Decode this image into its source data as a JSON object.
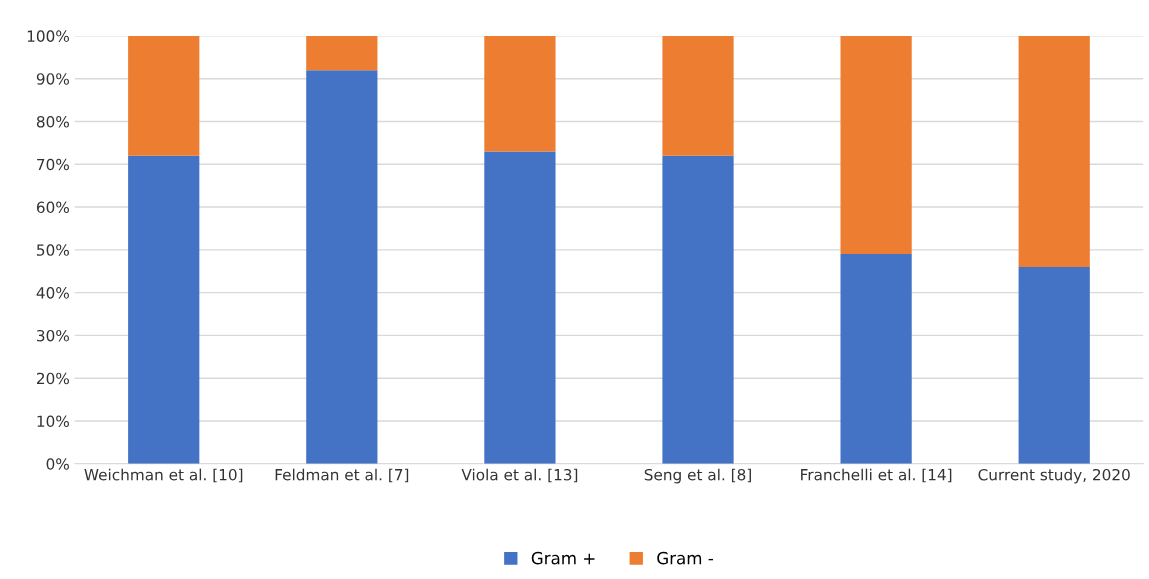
{
  "chart_data": {
    "type": "bar",
    "stacked": true,
    "categories": [
      "Weichman et al. [10]",
      "Feldman et al. [7]",
      "Viola et al. [13]",
      "Seng et al. [8]",
      "Franchelli et al. [14]",
      "Current study, 2020"
    ],
    "series": [
      {
        "name": "Gram +",
        "color": "#4472c4",
        "values": [
          72,
          92,
          73,
          72,
          49,
          46
        ]
      },
      {
        "name": "Gram -",
        "color": "#ed7d31",
        "values": [
          28,
          8,
          27,
          28,
          51,
          54
        ]
      }
    ],
    "ylim": [
      0,
      100
    ],
    "yticks": [
      {
        "value": 0,
        "label": "0%"
      },
      {
        "value": 10,
        "label": "10%"
      },
      {
        "value": 20,
        "label": "20%"
      },
      {
        "value": 30,
        "label": "30%"
      },
      {
        "value": 40,
        "label": "40%"
      },
      {
        "value": 50,
        "label": "50%"
      },
      {
        "value": 60,
        "label": "60%"
      },
      {
        "value": 70,
        "label": "70%"
      },
      {
        "value": 80,
        "label": "80%"
      },
      {
        "value": 90,
        "label": "90%"
      },
      {
        "value": 100,
        "label": "100%"
      }
    ],
    "grid": "y",
    "legend": "bottom"
  }
}
